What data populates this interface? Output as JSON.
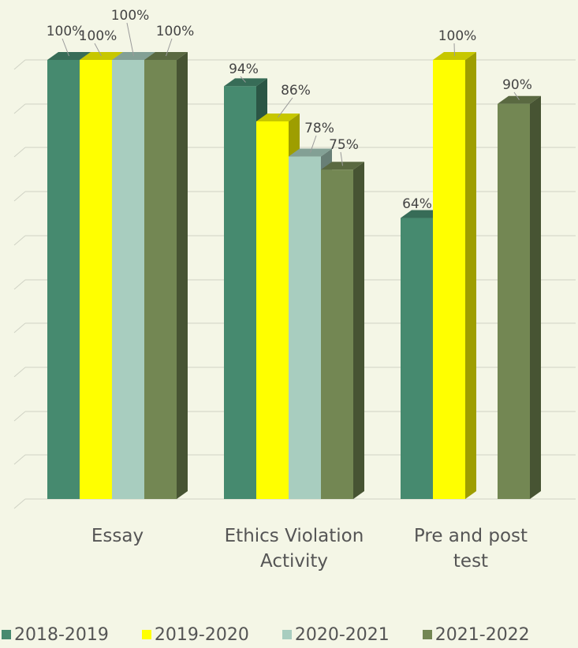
{
  "chart_data": {
    "type": "bar",
    "categories": [
      "Essay",
      "Ethics Violation Activity",
      "Pre and post test"
    ],
    "category_lines": [
      [
        "Essay"
      ],
      [
        "Ethics Violation",
        "Activity"
      ],
      [
        "Pre and post",
        "test"
      ]
    ],
    "series": [
      {
        "name": "2018-2019",
        "color": "#468a6f",
        "values": [
          100,
          94,
          64
        ],
        "labels": [
          "100%",
          "94%",
          "64%"
        ]
      },
      {
        "name": "2019-2020",
        "color": "#ffff00",
        "values": [
          100,
          86,
          100
        ],
        "labels": [
          "100%",
          "86%",
          "100%"
        ]
      },
      {
        "name": "2020-2021",
        "color": "#a8cdbf",
        "values": [
          100,
          78,
          null
        ],
        "labels": [
          "100%",
          "78%",
          ""
        ]
      },
      {
        "name": "2021-2022",
        "color": "#738753",
        "values": [
          100,
          75,
          90
        ],
        "labels": [
          "100%",
          "75%",
          "90%"
        ]
      }
    ],
    "ylim": [
      0,
      100
    ],
    "grid": true,
    "legend_position": "bottom"
  }
}
